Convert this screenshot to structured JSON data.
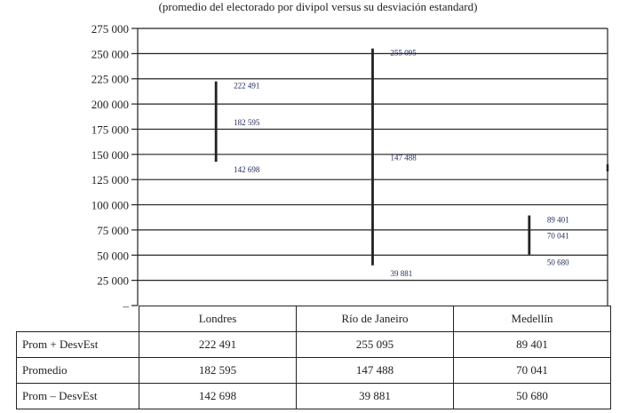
{
  "chart_data": {
    "type": "error-bar",
    "subtitle": "(promedio del electorado por divipol versus su desviación estandard)",
    "categories": [
      "Londres",
      "Río de Janeiro",
      "Medellín"
    ],
    "series": [
      {
        "name": "Prom + DesvEst",
        "values": [
          222491,
          255095,
          89401
        ],
        "labels": [
          "222 491",
          "255 095",
          "89 401"
        ]
      },
      {
        "name": "Promedio",
        "values": [
          182595,
          147488,
          70041
        ],
        "labels": [
          "182 595",
          "147 488",
          "70 041"
        ]
      },
      {
        "name": "Prom – DesvEst",
        "values": [
          142698,
          39881,
          50680
        ],
        "labels": [
          "142 698",
          "39 881",
          "50 680"
        ]
      }
    ],
    "ylim": [
      0,
      275000
    ],
    "yticks": [
      0,
      25000,
      50000,
      75000,
      100000,
      125000,
      150000,
      175000,
      200000,
      225000,
      250000,
      275000
    ],
    "ytick_labels": [
      "–",
      "25 000",
      "50 000",
      "75 000",
      "100 000",
      "125 000",
      "150 000",
      "175 000",
      "200 000",
      "225 000",
      "250 000",
      "275 000"
    ],
    "grid": true,
    "bar_label_color": "#1f2a5a"
  }
}
